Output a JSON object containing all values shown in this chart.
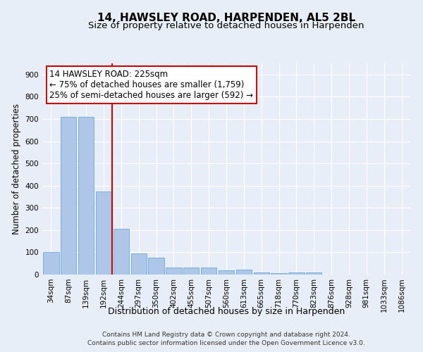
{
  "title": "14, HAWSLEY ROAD, HARPENDEN, AL5 2BL",
  "subtitle": "Size of property relative to detached houses in Harpenden",
  "xlabel": "Distribution of detached houses by size in Harpenden",
  "ylabel": "Number of detached properties",
  "categories": [
    "34sqm",
    "87sqm",
    "139sqm",
    "192sqm",
    "244sqm",
    "297sqm",
    "350sqm",
    "402sqm",
    "455sqm",
    "507sqm",
    "560sqm",
    "613sqm",
    "665sqm",
    "718sqm",
    "770sqm",
    "823sqm",
    "876sqm",
    "928sqm",
    "981sqm",
    "1033sqm",
    "1086sqm"
  ],
  "values": [
    102,
    708,
    708,
    375,
    207,
    95,
    75,
    32,
    32,
    32,
    20,
    22,
    8,
    5,
    10,
    10,
    0,
    0,
    0,
    0,
    0
  ],
  "bar_color": "#aec6e8",
  "bar_edge_color": "#5a9fd4",
  "red_line_index": 4,
  "annotation_text": "14 HAWSLEY ROAD: 225sqm\n← 75% of detached houses are smaller (1,759)\n25% of semi-detached houses are larger (592) →",
  "annotation_box_color": "#ffffff",
  "annotation_box_edge_color": "#cc0000",
  "red_line_color": "#cc0000",
  "ylim": [
    0,
    950
  ],
  "yticks": [
    0,
    100,
    200,
    300,
    400,
    500,
    600,
    700,
    800,
    900
  ],
  "footer_line1": "Contains HM Land Registry data © Crown copyright and database right 2024.",
  "footer_line2": "Contains public sector information licensed under the Open Government Licence v3.0.",
  "bg_color": "#e8eef8",
  "grid_color": "#ffffff",
  "title_fontsize": 11,
  "subtitle_fontsize": 9.5,
  "label_fontsize": 8.5,
  "tick_fontsize": 7.5,
  "footer_fontsize": 6.5
}
